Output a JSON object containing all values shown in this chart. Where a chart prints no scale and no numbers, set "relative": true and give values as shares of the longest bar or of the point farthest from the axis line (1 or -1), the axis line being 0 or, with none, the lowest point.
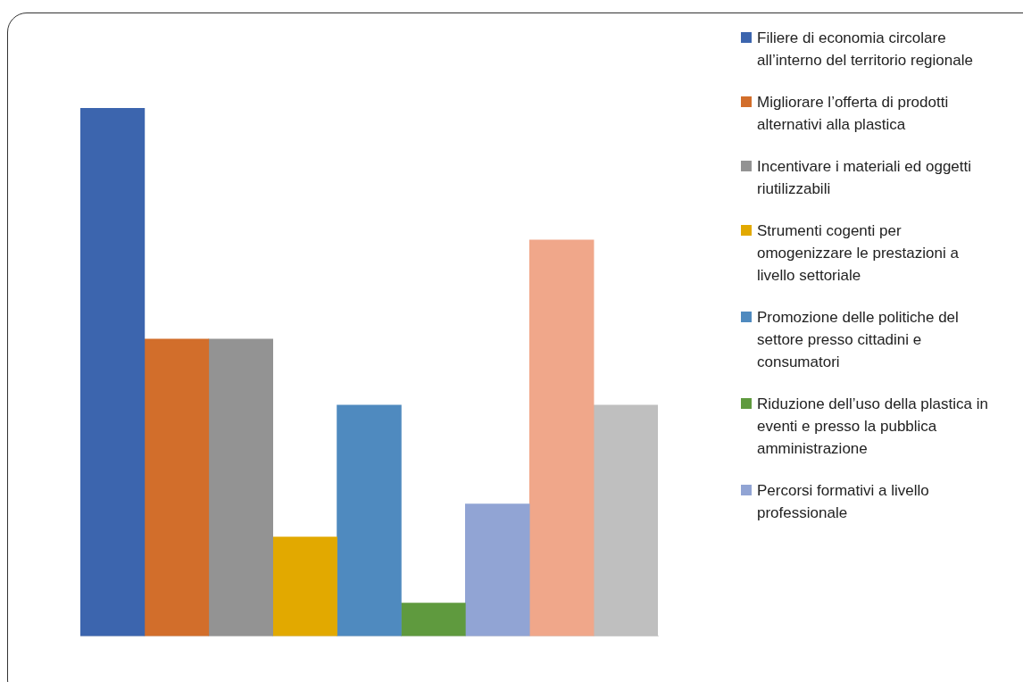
{
  "chart_data": {
    "type": "bar",
    "relative": true,
    "categories": [
      null
    ],
    "legend": "right",
    "grid": false,
    "series": [
      {
        "name": "Filiere di economia circolare all’interno del territorio regionale",
        "color": "#3c65ae",
        "values": [
          1
        ]
      },
      {
        "name": "Migliorare l’offerta di prodotti alternativi alla plastica",
        "color": "#d26e2b",
        "values": [
          0.5625
        ]
      },
      {
        "name": "Incentivare i materiali ed oggetti riutilizzabili",
        "color": "#939393",
        "values": [
          0.5625
        ]
      },
      {
        "name": "Strumenti cogenti per omogenizzare le prestazioni a livello settoriale",
        "color": "#e2a900",
        "values": [
          0.1875
        ]
      },
      {
        "name": "Promozione delle politiche del settore presso cittadini e consumatori",
        "color": "#4f8abf",
        "values": [
          0.4375
        ]
      },
      {
        "name": "Riduzione dell’uso della plastica in eventi e presso la pubblica amministrazione",
        "color": "#5f9a3e",
        "values": [
          0.0625
        ]
      },
      {
        "name": "Percorsi formativi a livello professionale",
        "color": "#91a4d4",
        "values": [
          0.25
        ]
      },
      {
        "color": "#f0a78a",
        "values": [
          0.75
        ]
      },
      {
        "color": "#bfbfbf",
        "values": [
          0.4375
        ]
      }
    ]
  }
}
